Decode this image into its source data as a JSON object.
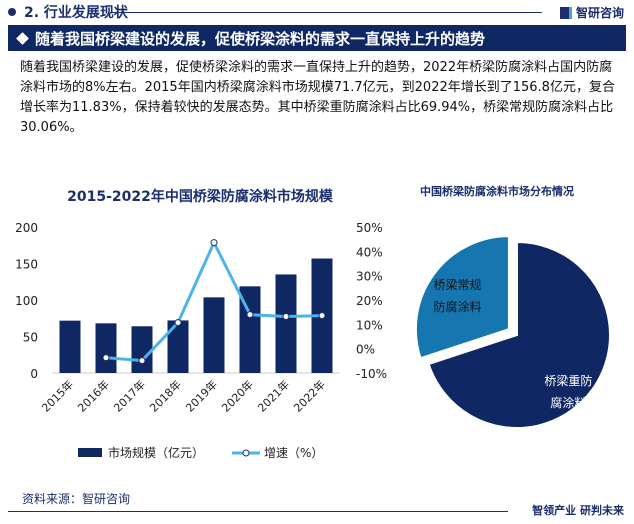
{
  "header": {
    "section": "2. 行业发展现状",
    "brand": "智研咨询"
  },
  "banner": {
    "title": "随着我国桥梁建设的发展，促使桥梁涂料的需求一直保持上升的趋势"
  },
  "paragraph": "随着我国桥梁建设的发展，促使桥梁涂料的需求一直保持上升的趋势，2022年桥梁防腐涂料占国内防腐涂料市场的8%左右。2015年国内桥梁腐涂料市场规模71.7亿元，到2022年增长到了156.8亿元，复合增长率为11.83%，保持着较快的发展态势。其中桥梁重防腐涂料占比69.94%，桥梁常规防腐涂料占比30.06%。",
  "chart_data": [
    {
      "type": "bar",
      "title": "2015-2022年中国桥梁防腐涂料市场规模",
      "categories": [
        "2015年",
        "2016年",
        "2017年",
        "2018年",
        "2019年",
        "2020年",
        "2021年",
        "2022年"
      ],
      "series": [
        {
          "name": "市场规模（亿元）",
          "type": "bar",
          "axis": "left",
          "color": "#0f2763",
          "values": [
            71.7,
            68,
            64,
            72,
            103.6,
            118.7,
            135,
            156.8
          ]
        },
        {
          "name": "增速（%）",
          "type": "line",
          "axis": "right",
          "color": "#4db3ec",
          "values": [
            null,
            -3.7,
            -4.9,
            10.7,
            43.6,
            14,
            13.2,
            13.6
          ]
        }
      ],
      "left_ticks": [
        "0",
        "50",
        "100",
        "150",
        "200"
      ],
      "ylim": [
        0,
        200
      ],
      "right_ticks": [
        "-10%",
        "0%",
        "10%",
        "20%",
        "30%",
        "40%",
        "50%"
      ],
      "y2lim": [
        -10,
        50
      ],
      "legend": "bottom"
    },
    {
      "type": "pie",
      "title": "中国桥梁防腐涂料市场分布情况",
      "slices": [
        {
          "label_lines": [
            "桥梁重防",
            "腐涂料"
          ],
          "value": 69.94,
          "color": "#0f2763"
        },
        {
          "label_lines": [
            "桥梁常规",
            "防腐涂料"
          ],
          "value": 30.06,
          "color": "#1677b0"
        }
      ]
    }
  ],
  "footer": {
    "source": "资料来源：智研咨询",
    "slogan": "智领产业 研判未来"
  }
}
